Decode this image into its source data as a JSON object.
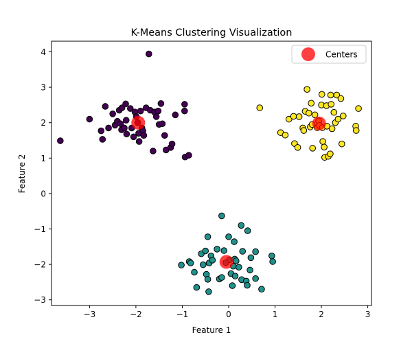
{
  "chart_data": {
    "type": "scatter",
    "title": "K-Means Clustering Visualization",
    "xlabel": "Feature 1",
    "ylabel": "Feature 2",
    "xlim": [
      -3.82,
      3.08
    ],
    "ylim": [
      -3.16,
      4.3
    ],
    "xticks": [
      -3,
      -2,
      -1,
      0,
      1,
      2,
      3
    ],
    "yticks": [
      -3,
      -2,
      -1,
      0,
      1,
      2,
      3,
      4
    ],
    "grid": false,
    "legend": {
      "position": "top-right",
      "entries": [
        {
          "label": "Centers",
          "color": "#ff0000"
        }
      ]
    },
    "series": [
      {
        "color": "#440154",
        "points": [
          [
            -3.63,
            1.49
          ],
          [
            -3.0,
            2.1
          ],
          [
            -2.75,
            1.77
          ],
          [
            -2.72,
            1.53
          ],
          [
            -2.66,
            2.46
          ],
          [
            -2.59,
            1.85
          ],
          [
            -2.5,
            2.25
          ],
          [
            -2.45,
            1.93
          ],
          [
            -2.4,
            2.04
          ],
          [
            -2.36,
            2.35
          ],
          [
            -2.33,
            1.97
          ],
          [
            -2.31,
            1.8
          ],
          [
            -2.3,
            2.42
          ],
          [
            -2.25,
            1.85
          ],
          [
            -2.21,
            2.07
          ],
          [
            -2.2,
            1.68
          ],
          [
            -2.22,
            2.53
          ],
          [
            -2.12,
            2.4
          ],
          [
            -2.09,
            1.85
          ],
          [
            -2.05,
            1.6
          ],
          [
            -2.02,
            2.3
          ],
          [
            -1.99,
            2.17
          ],
          [
            -1.96,
            2.0
          ],
          [
            -1.94,
            1.7
          ],
          [
            -1.93,
            1.47
          ],
          [
            -1.9,
            2.33
          ],
          [
            -1.87,
            1.85
          ],
          [
            -1.85,
            1.77
          ],
          [
            -1.83,
            1.64
          ],
          [
            -1.78,
            2.42
          ],
          [
            -1.72,
            3.94
          ],
          [
            -1.69,
            2.35
          ],
          [
            -1.63,
            1.2
          ],
          [
            -1.6,
            2.3
          ],
          [
            -1.56,
            2.17
          ],
          [
            -1.52,
            2.33
          ],
          [
            -1.5,
            1.95
          ],
          [
            -1.46,
            2.54
          ],
          [
            -1.43,
            1.97
          ],
          [
            -1.38,
            1.64
          ],
          [
            -1.35,
            1.23
          ],
          [
            -1.25,
            1.3
          ],
          [
            -1.22,
            1.4
          ],
          [
            -1.15,
            2.22
          ],
          [
            -0.95,
            2.52
          ],
          [
            -0.95,
            2.33
          ],
          [
            -0.94,
            1.03
          ],
          [
            -0.86,
            1.08
          ]
        ]
      },
      {
        "color": "#fde725",
        "points": [
          [
            0.67,
            2.42
          ],
          [
            1.12,
            1.72
          ],
          [
            1.22,
            1.65
          ],
          [
            1.3,
            2.1
          ],
          [
            1.4,
            2.18
          ],
          [
            1.42,
            1.41
          ],
          [
            1.49,
            1.3
          ],
          [
            1.52,
            2.17
          ],
          [
            1.6,
            1.85
          ],
          [
            1.62,
            1.78
          ],
          [
            1.65,
            2.32
          ],
          [
            1.69,
            2.94
          ],
          [
            1.73,
            2.27
          ],
          [
            1.76,
            1.88
          ],
          [
            1.78,
            2.55
          ],
          [
            1.8,
            1.95
          ],
          [
            1.81,
            1.28
          ],
          [
            1.86,
            2.22
          ],
          [
            1.91,
            1.86
          ],
          [
            1.94,
            2.05
          ],
          [
            1.96,
            1.92
          ],
          [
            2.0,
            2.5
          ],
          [
            2.01,
            2.8
          ],
          [
            2.02,
            1.86
          ],
          [
            2.03,
            1.47
          ],
          [
            2.06,
            1.31
          ],
          [
            2.07,
            1.02
          ],
          [
            2.11,
            2.48
          ],
          [
            2.12,
            1.9
          ],
          [
            2.15,
            1.05
          ],
          [
            2.19,
            1.12
          ],
          [
            2.2,
            2.78
          ],
          [
            2.21,
            2.52
          ],
          [
            2.23,
            1.83
          ],
          [
            2.27,
            2.29
          ],
          [
            2.3,
            2.0
          ],
          [
            2.33,
            2.78
          ],
          [
            2.36,
            2.1
          ],
          [
            2.42,
            2.68
          ],
          [
            2.44,
            1.4
          ],
          [
            2.47,
            2.19
          ],
          [
            2.74,
            1.9
          ],
          [
            2.75,
            1.78
          ],
          [
            2.8,
            2.4
          ]
        ]
      },
      {
        "color": "#21918c",
        "points": [
          [
            -1.02,
            -2.02
          ],
          [
            -0.85,
            -1.92
          ],
          [
            -0.82,
            -1.96
          ],
          [
            -0.74,
            -2.22
          ],
          [
            -0.69,
            -2.65
          ],
          [
            -0.59,
            -1.7
          ],
          [
            -0.55,
            -2.01
          ],
          [
            -0.5,
            -1.62
          ],
          [
            -0.48,
            -2.28
          ],
          [
            -0.45,
            -1.22
          ],
          [
            -0.45,
            -2.42
          ],
          [
            -0.42,
            -1.96
          ],
          [
            -0.43,
            -2.77
          ],
          [
            -0.38,
            -1.76
          ],
          [
            -0.35,
            -1.88
          ],
          [
            -0.25,
            -1.57
          ],
          [
            -0.2,
            -2.41
          ],
          [
            -0.15,
            -0.63
          ],
          [
            -0.15,
            -2.37
          ],
          [
            -0.1,
            -1.61
          ],
          [
            -0.06,
            -1.95
          ],
          [
            0.0,
            -1.22
          ],
          [
            0.02,
            -1.87
          ],
          [
            0.05,
            -2.26
          ],
          [
            0.08,
            -2.6
          ],
          [
            0.1,
            -2.05
          ],
          [
            0.12,
            -1.36
          ],
          [
            0.13,
            -1.85
          ],
          [
            0.14,
            -2.33
          ],
          [
            0.16,
            -1.9
          ],
          [
            0.22,
            -2.08
          ],
          [
            0.27,
            -0.9
          ],
          [
            0.28,
            -2.43
          ],
          [
            0.3,
            -1.63
          ],
          [
            0.38,
            -2.47
          ],
          [
            0.4,
            -2.59
          ],
          [
            0.41,
            -1.05
          ],
          [
            0.46,
            -2.16
          ],
          [
            0.48,
            -1.81
          ],
          [
            0.58,
            -2.4
          ],
          [
            0.58,
            -1.64
          ],
          [
            0.71,
            -2.7
          ],
          [
            0.93,
            -1.76
          ],
          [
            0.95,
            -1.92
          ]
        ]
      }
    ],
    "centers": [
      [
        -1.95,
        2.0
      ],
      [
        1.95,
        1.98
      ],
      [
        -0.05,
        -1.93
      ]
    ]
  }
}
